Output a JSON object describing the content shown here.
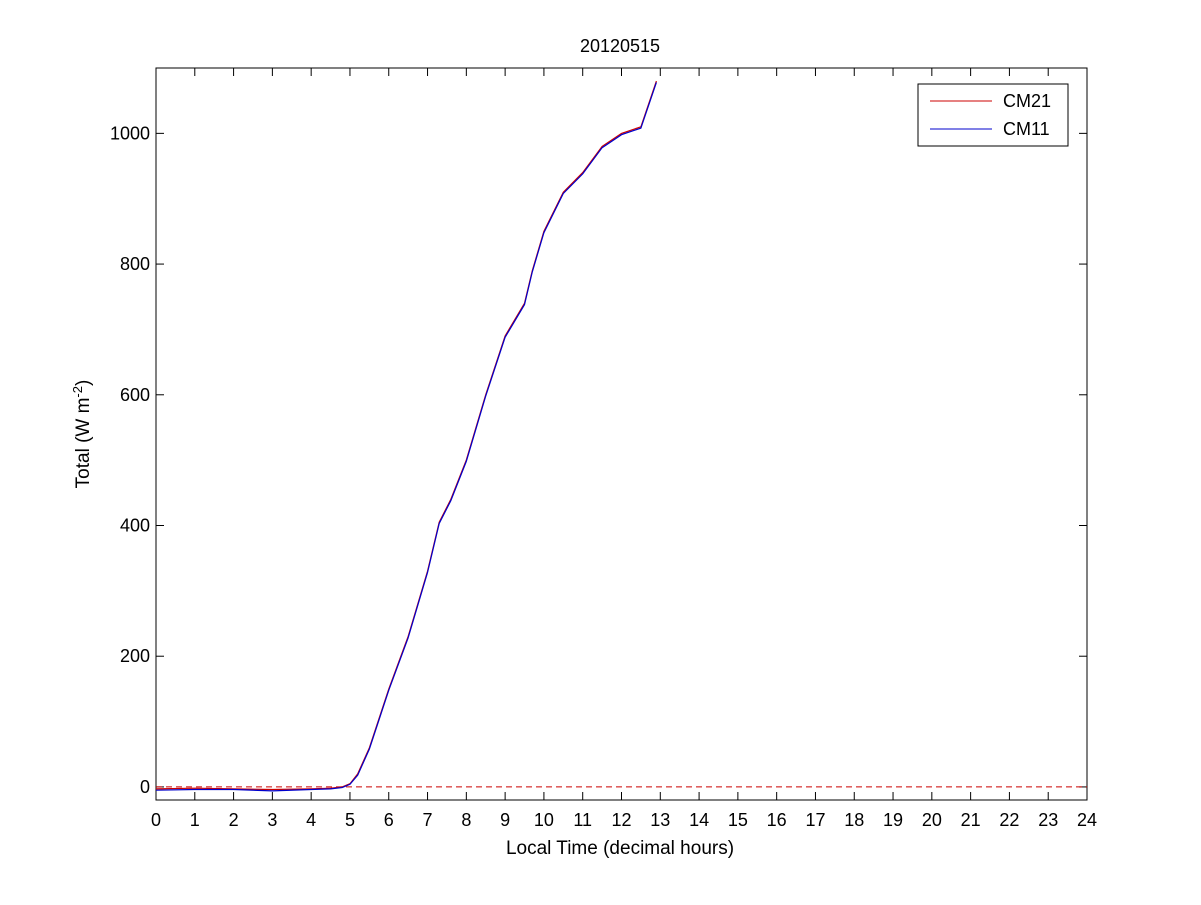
{
  "chart_data": {
    "type": "line",
    "title": "20120515",
    "xlabel": "Local Time (decimal hours)",
    "ylabel": {
      "prefix": "Total (W m",
      "superscript": "-2",
      "suffix": ")"
    },
    "xlim": [
      0,
      24
    ],
    "ylim": [
      -20,
      1100
    ],
    "xticks": [
      0,
      1,
      2,
      3,
      4,
      5,
      6,
      7,
      8,
      9,
      10,
      11,
      12,
      13,
      14,
      15,
      16,
      17,
      18,
      19,
      20,
      21,
      22,
      23,
      24
    ],
    "xtick_labels": [
      "0",
      "1",
      "2",
      "3",
      "4",
      "5",
      "6",
      "7",
      "8",
      "9",
      "10",
      "11",
      "12",
      "13",
      "14",
      "15",
      "16",
      "17",
      "18",
      "19",
      "20",
      "21",
      "22",
      "23",
      "24"
    ],
    "yticks": [
      0,
      200,
      400,
      600,
      800,
      1000
    ],
    "ytick_labels": [
      "0",
      "200",
      "400",
      "600",
      "800",
      "1000"
    ],
    "grid": false,
    "legend_position": "top-right",
    "zero_reference_line": {
      "y": 0,
      "style": "dashed",
      "color": "#cc0000"
    },
    "series": [
      {
        "name": "CM21",
        "color": "#cc0000",
        "x": [
          0,
          1,
          2,
          3,
          4,
          4.5,
          4.8,
          5.0,
          5.2,
          5.5,
          6.0,
          6.5,
          7.0,
          7.3,
          7.6,
          8.0,
          8.5,
          9.0,
          9.5,
          9.7,
          10.0,
          10.5,
          11.0,
          11.5,
          12.0,
          12.5,
          12.9
        ],
        "y": [
          -3,
          -2,
          -3,
          -4,
          -3,
          -2,
          0,
          5,
          20,
          60,
          150,
          230,
          330,
          405,
          440,
          500,
          600,
          690,
          740,
          790,
          850,
          910,
          940,
          980,
          1000,
          1010,
          1080
        ]
      },
      {
        "name": "CM11",
        "color": "#0000cc",
        "x": [
          0,
          1,
          2,
          3,
          4,
          4.5,
          4.8,
          5.0,
          5.2,
          5.5,
          6.0,
          6.5,
          7.0,
          7.3,
          7.6,
          8.0,
          8.5,
          9.0,
          9.5,
          9.7,
          10.0,
          10.5,
          11.0,
          11.5,
          12.0,
          12.5,
          12.9
        ],
        "y": [
          -5,
          -4,
          -4,
          -6,
          -4,
          -3,
          -1,
          4,
          18,
          58,
          148,
          228,
          328,
          403,
          438,
          498,
          598,
          688,
          738,
          788,
          848,
          908,
          938,
          978,
          998,
          1008,
          1078
        ]
      }
    ]
  }
}
